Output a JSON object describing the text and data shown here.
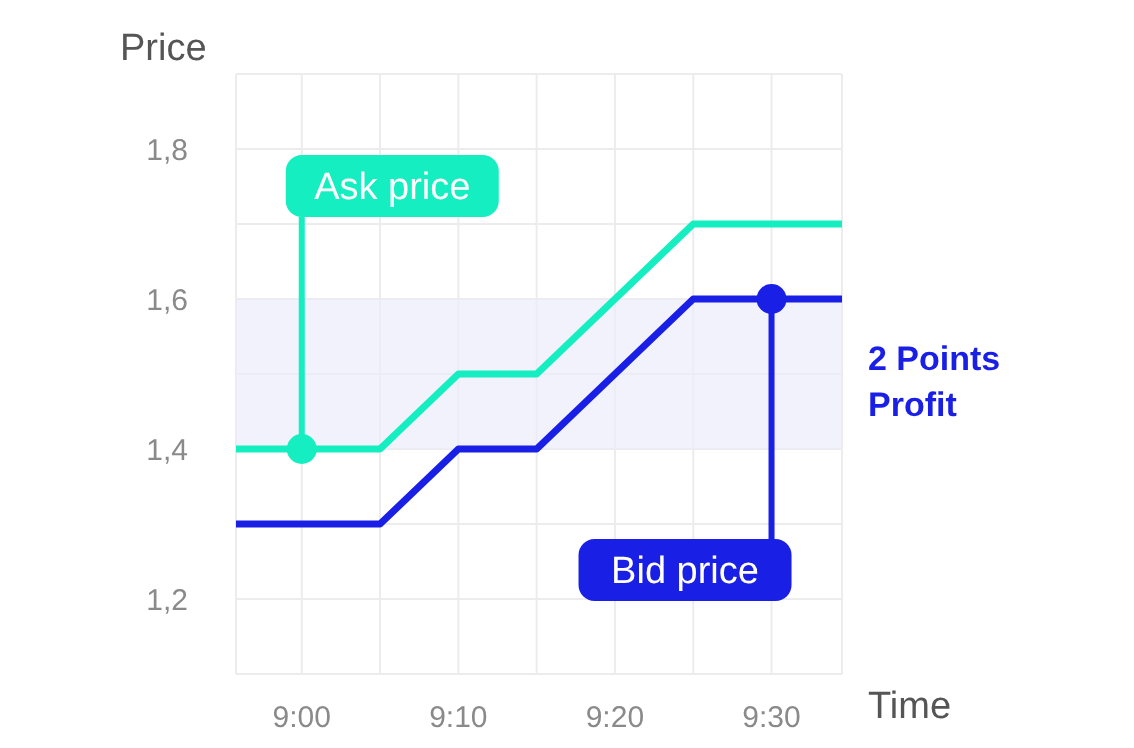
{
  "chart_data": {
    "type": "line",
    "xlabel": "Time",
    "ylabel": "Price",
    "x": [
      8.93,
      9.0833,
      9.1667,
      9.25,
      9.4167,
      9.575
    ],
    "series": [
      {
        "color": "#14eec0",
        "values": [
          1.4,
          1.4,
          1.5,
          1.5,
          1.7,
          1.7
        ]
      },
      {
        "color": "#1a1fe6",
        "values": [
          1.3,
          1.3,
          1.4,
          1.4,
          1.6,
          1.6
        ]
      }
    ],
    "xlim": [
      8.93,
      9.575
    ],
    "xticks": [
      {
        "value": 9,
        "label": "9:00"
      },
      {
        "value": 9.0833,
        "label": null
      },
      {
        "value": 9.1667,
        "label": "9:10"
      },
      {
        "value": 9.25,
        "label": null
      },
      {
        "value": 9.3333,
        "label": "9:20"
      },
      {
        "value": 9.4167,
        "label": null
      },
      {
        "value": 9.5,
        "label": "9:30"
      }
    ],
    "ylim": [
      1.1,
      1.9
    ],
    "yticks": [
      {
        "value": 1.1,
        "label": null
      },
      {
        "value": 1.2,
        "label": "1,2"
      },
      {
        "value": 1.3,
        "label": null
      },
      {
        "value": 1.4,
        "label": "1,4"
      },
      {
        "value": 1.5,
        "label": null
      },
      {
        "value": 1.6,
        "label": "1,6"
      },
      {
        "value": 1.7,
        "label": null
      },
      {
        "value": 1.8,
        "label": "1,8"
      },
      {
        "value": 1.9,
        "label": null
      }
    ],
    "grid": true,
    "marker": "none",
    "line_style": "solid",
    "bands": [
      {
        "axis": "y",
        "from": 1.4,
        "to": 1.6,
        "label": "2 Points Profit",
        "color": "#ecedfb"
      }
    ],
    "annotations": [
      {
        "text": "Ask price",
        "x": 9,
        "y": 1.4
      },
      {
        "text": "Bid price",
        "x": 9.5,
        "y": 1.6
      }
    ]
  }
}
